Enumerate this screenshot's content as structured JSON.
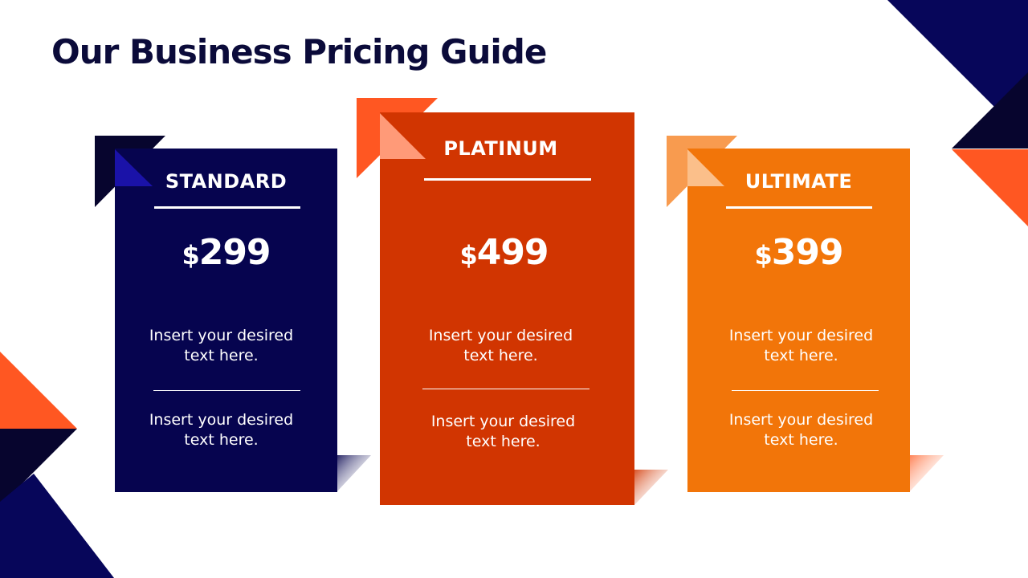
{
  "slide": {
    "title": "Our Business Pricing Guide"
  },
  "colors": {
    "navy": "#06044f",
    "dark_navy": "#07052e",
    "red_orange": "#d13501",
    "orange": "#f27509",
    "accent_orange": "#ff5722"
  },
  "plans": [
    {
      "name": "STANDARD",
      "currency": "$",
      "amount": "299",
      "text_1_line_1": "Insert your desired",
      "text_1_line_2": "text here.",
      "text_2_line_1": "Insert your desired",
      "text_2_line_2": "text here."
    },
    {
      "name": "PLATINUM",
      "currency": "$",
      "amount": "499",
      "text_1_line_1": "Insert your desired",
      "text_1_line_2": "text here.",
      "text_2_line_1": "Insert your desired",
      "text_2_line_2": "text here."
    },
    {
      "name": "ULTIMATE",
      "currency": "$",
      "amount": "399",
      "text_1_line_1": "Insert your desired",
      "text_1_line_2": "text here.",
      "text_2_line_1": "Insert your desired",
      "text_2_line_2": "text here."
    }
  ]
}
